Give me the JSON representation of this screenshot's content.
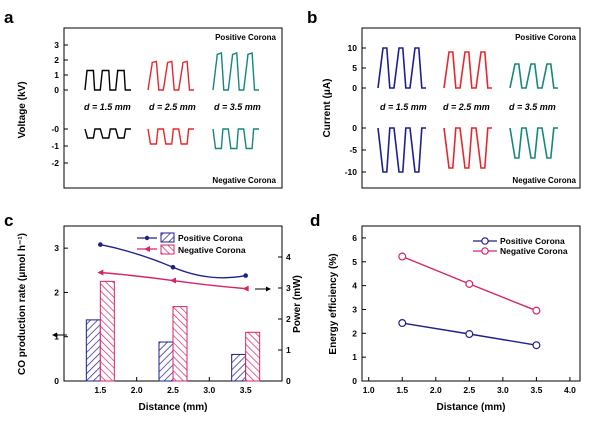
{
  "chart_data": [
    {
      "panel": "a",
      "type": "line",
      "ylabel": "Voltage (kV)",
      "yticks": [
        "3",
        "2",
        "1",
        "0",
        "-0",
        "-1",
        "-2"
      ],
      "top_label": "Positive Corona",
      "bottom_label": "Negative Corona",
      "series": [
        {
          "label": "d = 1.5 mm",
          "color": "#000000",
          "positive_amplitude_kV": 1.3,
          "negative_amplitude_kV": -0.6
        },
        {
          "label": "d = 2.5 mm",
          "color": "#e8262b",
          "positive_amplitude_kV": 1.7,
          "negative_amplitude_kV": -1.0
        },
        {
          "label": "d = 3.5 mm",
          "color": "#15877a",
          "positive_amplitude_kV": 2.2,
          "negative_amplitude_kV": -1.3
        }
      ]
    },
    {
      "panel": "b",
      "type": "line",
      "ylabel": "Current (μA)",
      "yticks": [
        "10",
        "5",
        "0",
        "0",
        "-5",
        "-10"
      ],
      "top_label": "Positive Corona",
      "bottom_label": "Negative Corona",
      "series": [
        {
          "label": "d = 1.5 mm",
          "color": "#1d1f8c",
          "positive_amplitude_uA": 10,
          "negative_amplitude_uA": -11
        },
        {
          "label": "d = 2.5 mm",
          "color": "#e8262b",
          "positive_amplitude_uA": 9,
          "negative_amplitude_uA": -10
        },
        {
          "label": "d = 3.5 mm",
          "color": "#15877a",
          "positive_amplitude_uA": 6,
          "negative_amplitude_uA": -7.5
        }
      ]
    },
    {
      "panel": "c",
      "type": "bar",
      "xlabel": "Distance (mm)",
      "ylabel_left": "CO production rate (μmol h⁻¹)",
      "ylabel_right": "Power (mW)",
      "xlim": [
        1.0,
        4.0
      ],
      "xticks": [
        "1.5",
        "2.0",
        "2.5",
        "3.0",
        "3.5"
      ],
      "ylim_left": [
        0,
        3.5
      ],
      "yticks_left": [
        "0",
        "1",
        "2",
        "3"
      ],
      "ylim_right": [
        0,
        5
      ],
      "yticks_right": [
        "0",
        "1",
        "2",
        "3",
        "4"
      ],
      "categories": [
        1.5,
        2.5,
        3.5
      ],
      "bars": [
        {
          "name": "Positive Corona",
          "color": "#1d1f8c",
          "values": [
            1.38,
            0.88,
            0.6
          ]
        },
        {
          "name": "Negative Corona",
          "color": "#d6246a",
          "values": [
            2.25,
            1.68,
            1.1
          ]
        }
      ],
      "lines": [
        {
          "name": "Positive Corona",
          "color": "#1d1f8c",
          "x": [
            1.5,
            2.5,
            3.5
          ],
          "values_mW": [
            4.4,
            3.67,
            3.4
          ]
        },
        {
          "name": "Negative Corona",
          "color": "#d6246a",
          "x": [
            1.5,
            2.5,
            3.5
          ],
          "values_mW": [
            3.5,
            3.24,
            2.98
          ]
        }
      ],
      "legend": "top-right"
    },
    {
      "panel": "d",
      "type": "line",
      "xlabel": "Distance (mm)",
      "ylabel": "Energy efficiency (%)",
      "xlim": [
        0.9,
        4.15
      ],
      "xticks": [
        "1.0",
        "1.5",
        "2.0",
        "2.5",
        "3.0",
        "3.5",
        "4.0"
      ],
      "ylim": [
        0,
        6.5
      ],
      "yticks": [
        "0",
        "1",
        "2",
        "3",
        "4",
        "5",
        "6"
      ],
      "series": [
        {
          "name": "Positive Corona",
          "color": "#1d1f8c",
          "x": [
            1.5,
            2.5,
            3.5
          ],
          "y": [
            2.43,
            1.97,
            1.5
          ]
        },
        {
          "name": "Negative Corona",
          "color": "#d6246a",
          "x": [
            1.5,
            2.5,
            3.5
          ],
          "y": [
            5.22,
            4.07,
            2.95
          ]
        }
      ],
      "legend": "top-right"
    }
  ]
}
